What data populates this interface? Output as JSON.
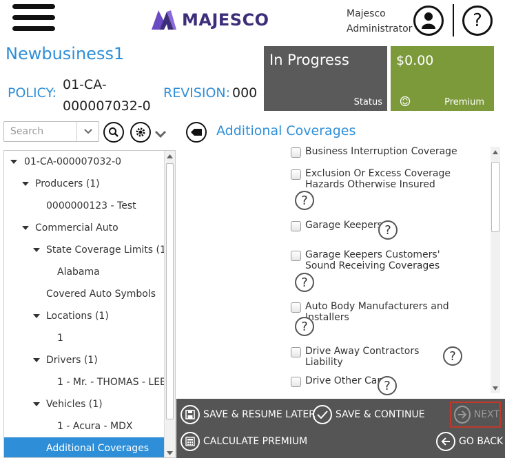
{
  "header": {
    "brand": "MAJESCO",
    "user_line1": "Majesco",
    "user_line2": "Administrator"
  },
  "policy": {
    "title": "Newbusiness1",
    "policy_label": "POLICY:",
    "policy_number": "01-CA-000007032-0",
    "revision_label": "REVISION:",
    "revision_number": "000"
  },
  "status_tile": {
    "value": "In Progress",
    "label": "Status"
  },
  "premium_tile": {
    "value": "$0.00",
    "label": "Premium"
  },
  "search": {
    "placeholder": "Search"
  },
  "section": {
    "title": "Additional Coverages"
  },
  "tree": [
    {
      "label": "01-CA-000007032-0"
    },
    {
      "label": "Producers (1)"
    },
    {
      "label": "0000000123 - Test"
    },
    {
      "label": "Commercial Auto"
    },
    {
      "label": "State Coverage Limits (1)"
    },
    {
      "label": "Alabama"
    },
    {
      "label": "Covered Auto Symbols"
    },
    {
      "label": "Locations (1)"
    },
    {
      "label": "1"
    },
    {
      "label": "Drivers (1)"
    },
    {
      "label": "1 - Mr. - THOMAS - LEE"
    },
    {
      "label": "Vehicles (1)"
    },
    {
      "label": "1 - Acura - MDX"
    },
    {
      "label": "Additional Coverages"
    }
  ],
  "coverages": [
    {
      "label": "Business Interruption Coverage",
      "checked": false
    },
    {
      "label": "Exclusion Or Excess Coverage Hazards Otherwise Insured",
      "checked": false
    },
    {
      "label": "Garage Keepers",
      "checked": false
    },
    {
      "label": "Garage Keepers Customers' Sound Receiving Coverages",
      "checked": false
    },
    {
      "label": "Auto Body Manufacturers and Installers",
      "checked": false
    },
    {
      "label": "Drive Away Contractors Liability",
      "checked": false
    },
    {
      "label": "Drive Other Car",
      "checked": false
    }
  ],
  "help_glyph": "?",
  "footer": {
    "save_resume": "SAVE & RESUME LATER",
    "save_continue": "SAVE & CONTINUE",
    "next": "NEXT",
    "calculate": "CALCULATE PREMIUM",
    "go_back": "GO BACK"
  },
  "colors": {
    "accent": "#2e8fd8",
    "status_tile": "#5a5a5a",
    "premium_tile": "#7c9a3a",
    "footer": "#555555",
    "next_border": "#c0392b",
    "brand": "#3d2e7a"
  },
  "icons": [
    "menu-icon",
    "user-icon",
    "help-icon",
    "search-icon",
    "gear-icon",
    "chevron-down-icon",
    "back-tag-icon",
    "refresh-icon",
    "save-icon",
    "check-icon",
    "next-arrow-icon",
    "calculator-icon",
    "back-arrow-icon"
  ]
}
